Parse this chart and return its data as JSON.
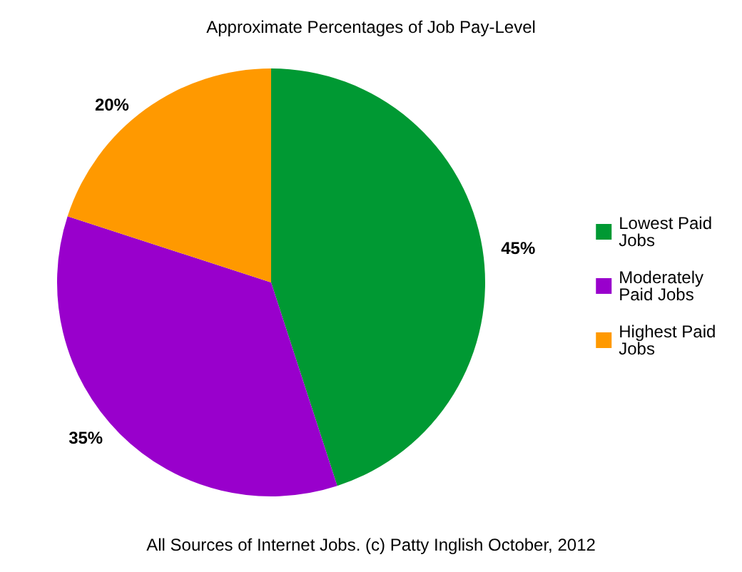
{
  "chart_data": {
    "type": "pie",
    "title": "Approximate Percentages of Job Pay-Level",
    "categories": [
      "Lowest Paid Jobs",
      "Moderately Paid Jobs",
      "Highest Paid Jobs"
    ],
    "values": [
      45,
      35,
      20
    ],
    "colors": [
      "#009933",
      "#9900cc",
      "#ff9900"
    ],
    "value_labels": [
      "45%",
      "35%",
      "20%"
    ],
    "legend": "right",
    "annotations": [
      "All Sources of Internet Jobs. (c) Patty Inglish October, 2012"
    ]
  }
}
